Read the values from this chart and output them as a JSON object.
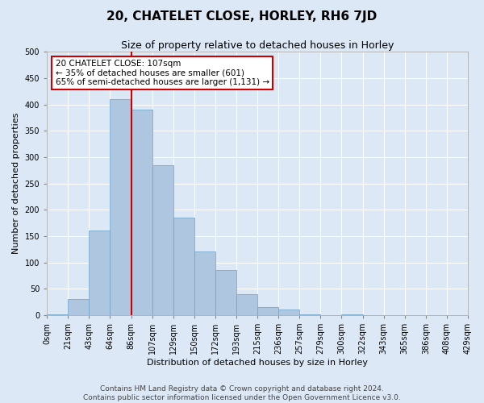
{
  "title": "20, CHATELET CLOSE, HORLEY, RH6 7JD",
  "subtitle": "Size of property relative to detached houses in Horley",
  "xlabel": "Distribution of detached houses by size in Horley",
  "ylabel": "Number of detached properties",
  "bin_labels": [
    "0sqm",
    "21sqm",
    "43sqm",
    "64sqm",
    "86sqm",
    "107sqm",
    "129sqm",
    "150sqm",
    "172sqm",
    "193sqm",
    "215sqm",
    "236sqm",
    "257sqm",
    "279sqm",
    "300sqm",
    "322sqm",
    "343sqm",
    "365sqm",
    "386sqm",
    "408sqm",
    "429sqm"
  ],
  "bar_heights": [
    2,
    30,
    160,
    410,
    390,
    285,
    185,
    120,
    85,
    40,
    15,
    10,
    2,
    0,
    2,
    0,
    0,
    0,
    0,
    0
  ],
  "bar_color": "#aec6df",
  "bar_edge_color": "#6aa0c8",
  "vline_x_index": 4,
  "vline_color": "#cc0000",
  "annotation_text": "20 CHATELET CLOSE: 107sqm\n← 35% of detached houses are smaller (601)\n65% of semi-detached houses are larger (1,131) →",
  "annotation_box_color": "#ffffff",
  "annotation_box_edge_color": "#cc0000",
  "ylim": [
    0,
    500
  ],
  "footer1": "Contains HM Land Registry data © Crown copyright and database right 2024.",
  "footer2": "Contains public sector information licensed under the Open Government Licence v3.0.",
  "bg_color": "#dce8f5",
  "plot_bg_color": "#dce8f5",
  "grid_color": "#ffffff",
  "title_fontsize": 11,
  "subtitle_fontsize": 9,
  "xlabel_fontsize": 8,
  "ylabel_fontsize": 8,
  "tick_fontsize": 7,
  "footer_fontsize": 6.5
}
